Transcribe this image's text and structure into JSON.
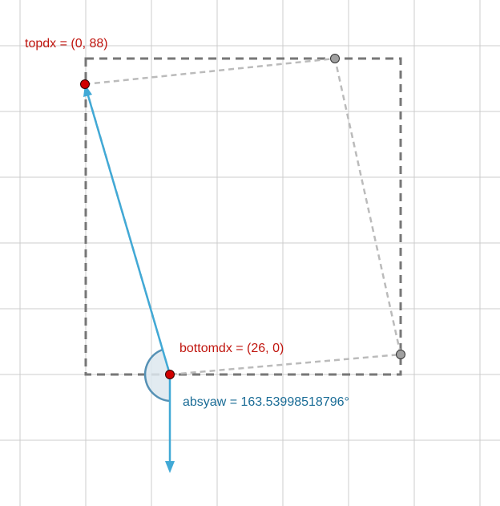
{
  "labels": {
    "top_point": "topdx = (0, 88)",
    "bottom_point": "bottomdx = (26, 0)",
    "angle": "absyaw = 163.53998518796°"
  },
  "colors": {
    "point_label": "#c0160f",
    "angle_label": "#1a6c96",
    "arrow": "#41a9d6",
    "angle_fill": "#dde7ee",
    "angle_stroke": "#5591b5",
    "grid": "#cccccc",
    "dashed_box": "#777777",
    "light_dashed": "#bbbbbb",
    "red_point": "#d10000",
    "gray_point": "#a0a0a0"
  },
  "icons": {
    "top_point": "red-point",
    "bottom_point": "red-point",
    "corner_points": "gray-point"
  }
}
